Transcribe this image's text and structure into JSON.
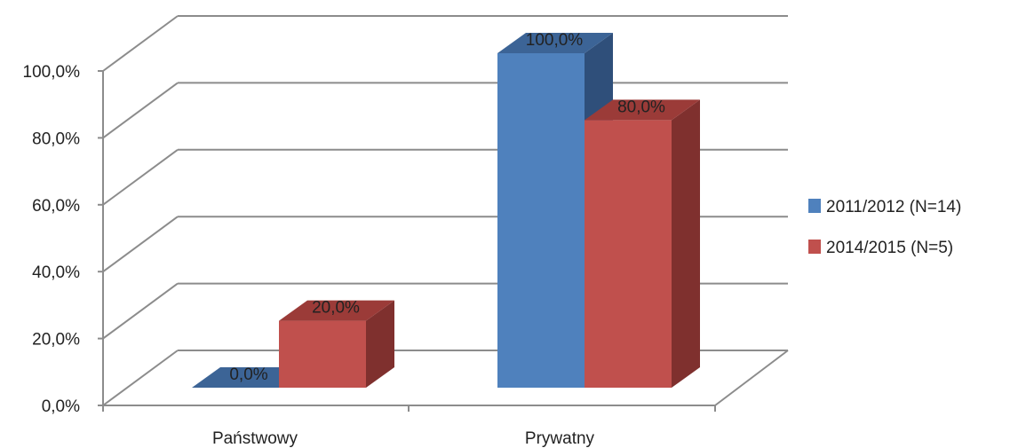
{
  "chart_data": {
    "type": "bar",
    "categories": [
      "Państwowy",
      "Prywatny"
    ],
    "series": [
      {
        "name": "2011/2012 (N=14)",
        "values": [
          0.0,
          100.0
        ],
        "labels": [
          "0,0%",
          "100,0%"
        ]
      },
      {
        "name": "2014/2015 (N=5)",
        "values": [
          20.0,
          80.0
        ],
        "labels": [
          "20,0%",
          "80,0%"
        ]
      }
    ],
    "ylim": [
      0,
      100
    ],
    "yticks": [
      "0,0%",
      "20,0%",
      "40,0%",
      "60,0%",
      "80,0%",
      "100,0%"
    ],
    "grid": true,
    "legend_position": "right",
    "three_d": true,
    "colors": {
      "series1_front": "#4f81bd",
      "series1_top": "#3c6496",
      "series1_side": "#2f4f7a",
      "series2_front": "#c0504d",
      "series2_top": "#9b3b38",
      "series2_side": "#7f302e",
      "grid": "#8c8c8c"
    }
  }
}
